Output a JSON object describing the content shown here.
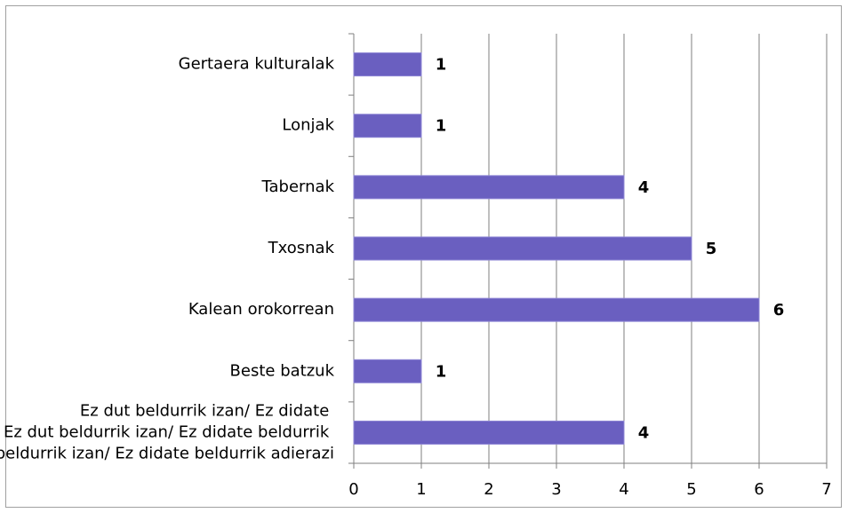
{
  "chart_data": {
    "type": "bar",
    "orientation": "horizontal",
    "categories": [
      "Gertaera kulturalak",
      "Lonjak",
      "Tabernak",
      "Txosnak",
      "Kalean orokorrean",
      "Beste batzuk",
      "Ez dut beldurrik izan/ Ez didate beldurrik adierazi"
    ],
    "values": [
      1,
      1,
      4,
      5,
      6,
      1,
      4
    ],
    "color": "#6a5fc0",
    "xlim": [
      0,
      7
    ],
    "xticks": [
      0,
      1,
      2,
      3,
      4,
      5,
      6,
      7
    ],
    "grid": true
  }
}
